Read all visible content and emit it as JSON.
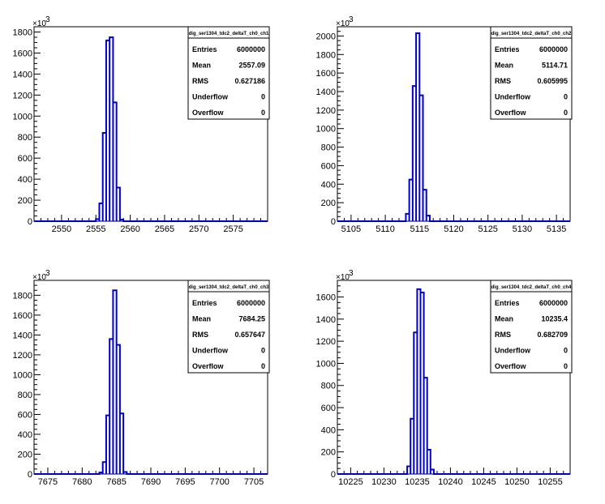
{
  "chart_data": [
    {
      "type": "bar",
      "title": "",
      "stats_title": "dig_ser1304_tdc2_deltaT_ch0_ch1",
      "stats": [
        {
          "label": "Entries",
          "value": "6000000"
        },
        {
          "label": "Mean",
          "value": "2557.09"
        },
        {
          "label": "RMS",
          "value": "0.627186"
        },
        {
          "label": "Underflow",
          "value": "0"
        },
        {
          "label": "Overflow",
          "value": "0"
        }
      ],
      "y_exponent_label": "×10",
      "y_exponent_power": "3",
      "xlim": [
        2546,
        2580
      ],
      "ylim": [
        0,
        1850
      ],
      "xticks": [
        "2550",
        "2555",
        "2560",
        "2565",
        "2570",
        "2575"
      ],
      "yticks": [
        "0",
        "200",
        "400",
        "600",
        "800",
        "1000",
        "1200",
        "1400",
        "1600",
        "1800"
      ],
      "bin_width": 0.5,
      "bins": [
        {
          "x": 2555.0,
          "y": 20
        },
        {
          "x": 2555.5,
          "y": 170
        },
        {
          "x": 2556.0,
          "y": 840
        },
        {
          "x": 2556.5,
          "y": 1720
        },
        {
          "x": 2557.0,
          "y": 1750
        },
        {
          "x": 2557.5,
          "y": 1130
        },
        {
          "x": 2558.0,
          "y": 320
        },
        {
          "x": 2558.5,
          "y": 15
        }
      ]
    },
    {
      "type": "bar",
      "title": "",
      "stats_title": "dig_ser1304_tdc2_deltaT_ch0_ch2",
      "stats": [
        {
          "label": "Entries",
          "value": "6000000"
        },
        {
          "label": "Mean",
          "value": "5114.71"
        },
        {
          "label": "RMS",
          "value": "0.605995"
        },
        {
          "label": "Underflow",
          "value": "0"
        },
        {
          "label": "Overflow",
          "value": "0"
        }
      ],
      "y_exponent_label": "×10",
      "y_exponent_power": "3",
      "xlim": [
        5103,
        5137
      ],
      "ylim": [
        0,
        2100
      ],
      "xticks": [
        "5105",
        "5110",
        "5115",
        "5120",
        "5125",
        "5130",
        "5135"
      ],
      "yticks": [
        "0",
        "200",
        "400",
        "600",
        "800",
        "1000",
        "1200",
        "1400",
        "1600",
        "1800",
        "2000"
      ],
      "bin_width": 0.5,
      "bins": [
        {
          "x": 5113.0,
          "y": 80
        },
        {
          "x": 5113.5,
          "y": 450
        },
        {
          "x": 5114.0,
          "y": 1460
        },
        {
          "x": 5114.5,
          "y": 2030
        },
        {
          "x": 5115.0,
          "y": 1360
        },
        {
          "x": 5115.5,
          "y": 340
        },
        {
          "x": 5116.0,
          "y": 60
        }
      ]
    },
    {
      "type": "bar",
      "title": "",
      "stats_title": "dig_ser1304_tdc2_deltaT_ch0_ch3",
      "stats": [
        {
          "label": "Entries",
          "value": "6000000"
        },
        {
          "label": "Mean",
          "value": "7684.25"
        },
        {
          "label": "RMS",
          "value": "0.657647"
        },
        {
          "label": "Underflow",
          "value": "0"
        },
        {
          "label": "Overflow",
          "value": "0"
        }
      ],
      "y_exponent_label": "×10",
      "y_exponent_power": "3",
      "xlim": [
        7673,
        7707
      ],
      "ylim": [
        0,
        1950
      ],
      "xticks": [
        "7675",
        "7680",
        "7685",
        "7690",
        "7695",
        "7700",
        "7705"
      ],
      "yticks": [
        "0",
        "200",
        "400",
        "600",
        "800",
        "1000",
        "1200",
        "1400",
        "1600",
        "1800"
      ],
      "bin_width": 0.5,
      "bins": [
        {
          "x": 7682.5,
          "y": 15
        },
        {
          "x": 7683.0,
          "y": 120
        },
        {
          "x": 7683.5,
          "y": 590
        },
        {
          "x": 7684.0,
          "y": 1360
        },
        {
          "x": 7684.5,
          "y": 1850
        },
        {
          "x": 7685.0,
          "y": 1300
        },
        {
          "x": 7685.5,
          "y": 610
        },
        {
          "x": 7686.0,
          "y": 20
        }
      ]
    },
    {
      "type": "bar",
      "title": "",
      "stats_title": "dig_ser1304_tdc2_deltaT_ch0_ch4",
      "stats": [
        {
          "label": "Entries",
          "value": "6000000"
        },
        {
          "label": "Mean",
          "value": "10235.4"
        },
        {
          "label": "RMS",
          "value": "0.682709"
        },
        {
          "label": "Underflow",
          "value": "0"
        },
        {
          "label": "Overflow",
          "value": "0"
        }
      ],
      "y_exponent_label": "×10",
      "y_exponent_power": "3",
      "xlim": [
        10223,
        10258
      ],
      "ylim": [
        0,
        1750
      ],
      "xticks": [
        "10225",
        "10230",
        "10235",
        "10240",
        "10245",
        "10250",
        "10255"
      ],
      "yticks": [
        "0",
        "200",
        "400",
        "600",
        "800",
        "1000",
        "1200",
        "1400",
        "1600"
      ],
      "bin_width": 0.5,
      "bins": [
        {
          "x": 10233.5,
          "y": 70
        },
        {
          "x": 10234.0,
          "y": 500
        },
        {
          "x": 10234.5,
          "y": 1280
        },
        {
          "x": 10235.0,
          "y": 1670
        },
        {
          "x": 10235.5,
          "y": 1640
        },
        {
          "x": 10236.0,
          "y": 870
        },
        {
          "x": 10236.5,
          "y": 220
        },
        {
          "x": 10237.0,
          "y": 40
        }
      ]
    }
  ]
}
